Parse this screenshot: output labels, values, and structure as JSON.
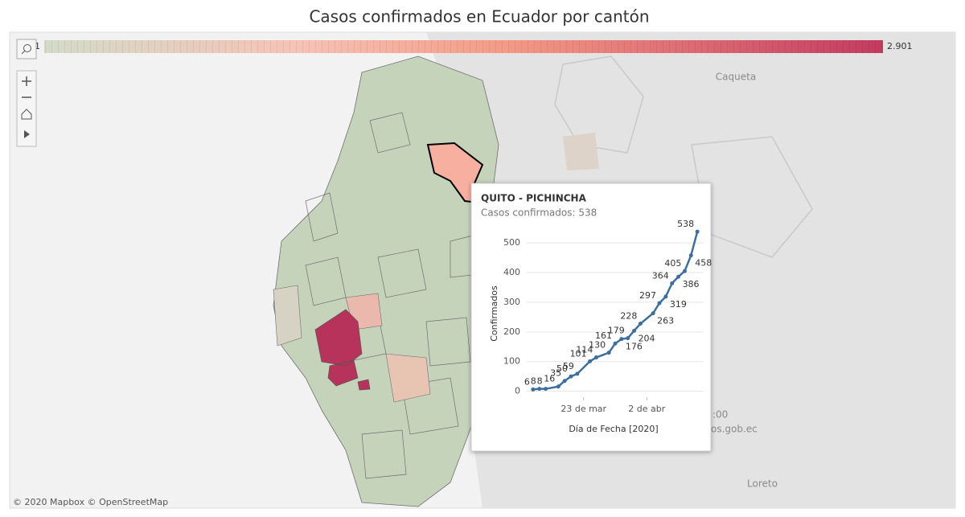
{
  "header": {
    "title": "Casos confirmados en Ecuador por cantón"
  },
  "legend": {
    "min_label": "1",
    "max_label": "2.901"
  },
  "map_labels": {
    "north": "Caqueta",
    "south": "Loreto",
    "partial_time": ":00",
    "partial_source": "os.gob.ec"
  },
  "attribution": "© 2020 Mapbox  © OpenStreetMap",
  "tooltip": {
    "title": "QUITO - PICHINCHA",
    "subtitle": "Casos confirmados: 538"
  },
  "chart_data": {
    "type": "line",
    "y_label": "Confirmados",
    "x_label": "Día de Fecha [2020]",
    "x": [
      "2020-03-15",
      "2020-03-16",
      "2020-03-17",
      "2020-03-19",
      "2020-03-20",
      "2020-03-21",
      "2020-03-22",
      "2020-03-24",
      "2020-03-25",
      "2020-03-27",
      "2020-03-28",
      "2020-03-29",
      "2020-03-30",
      "2020-03-31",
      "2020-04-01",
      "2020-04-03",
      "2020-04-04",
      "2020-04-05",
      "2020-04-06",
      "2020-04-07",
      "2020-04-08",
      "2020-04-09",
      "2020-04-10"
    ],
    "series": [
      {
        "color": "#3e6e9c",
        "values": [
          6,
          8,
          8,
          16,
          35,
          50,
          59,
          101,
          114,
          130,
          161,
          176,
          179,
          204,
          228,
          263,
          297,
          319,
          364,
          386,
          405,
          458,
          538
        ]
      }
    ],
    "xlim": [
      "2020-03-14",
      "2020-04-11"
    ],
    "xticks": [
      {
        "value": "2020-03-23",
        "label": "23 de mar"
      },
      {
        "value": "2020-04-02",
        "label": "2 de abr"
      }
    ],
    "ylim": [
      -20,
      560
    ],
    "yticks": [
      0,
      100,
      200,
      300,
      400,
      500
    ],
    "grid": true
  }
}
